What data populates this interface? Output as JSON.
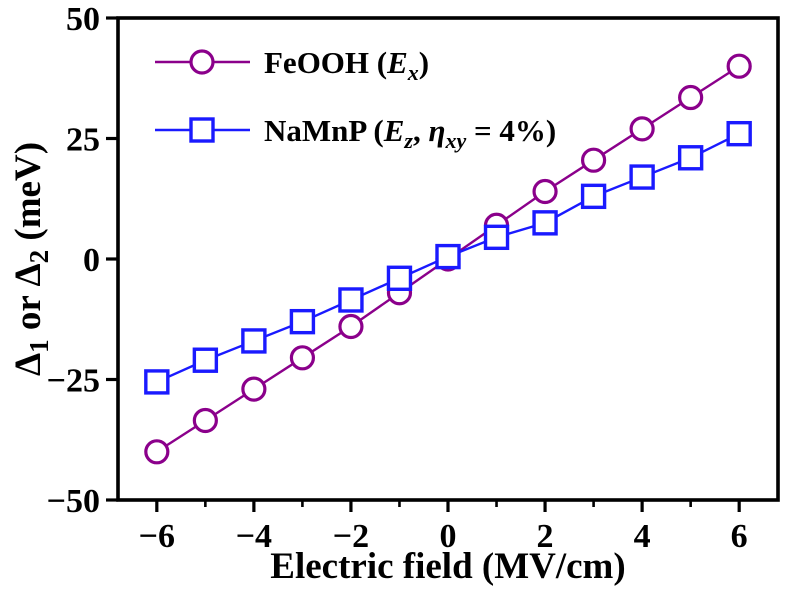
{
  "figure": {
    "background": "#ffffff",
    "frame_color": "#000000"
  },
  "chart_data": {
    "type": "line",
    "title": "",
    "xlabel": "Electric field (MV/cm)",
    "ylabel_plain": "Δ1 or Δ2 (meV)",
    "ylabel_segments": [
      {
        "t": "Δ"
      },
      {
        "t": "1",
        "sub": true
      },
      {
        "t": " or "
      },
      {
        "t": "Δ"
      },
      {
        "t": "2",
        "sub": true
      },
      {
        "t": " (meV)"
      }
    ],
    "x": [
      -6,
      -5,
      -4,
      -3,
      -2,
      -1,
      0,
      1,
      2,
      3,
      4,
      5,
      6
    ],
    "series": [
      {
        "name": "FeOOH (Ex)",
        "label_segments": [
          {
            "t": "FeOOH ("
          },
          {
            "t": "E",
            "it": true
          },
          {
            "t": "x",
            "sub": true,
            "it": true
          },
          {
            "t": ")"
          }
        ],
        "color": "#8B008B",
        "marker": "circle",
        "values": [
          -40,
          -33.5,
          -27,
          -20.5,
          -14,
          -7,
          0,
          7,
          14,
          20.5,
          27,
          33.5,
          40
        ]
      },
      {
        "name": "NaMnP (Ez, ηxy = 4%)",
        "label_segments": [
          {
            "t": "NaMnP ("
          },
          {
            "t": "E",
            "it": true
          },
          {
            "t": "z",
            "sub": true,
            "it": true
          },
          {
            "t": ",  "
          },
          {
            "t": "η",
            "it": true
          },
          {
            "t": "xy",
            "sub": true,
            "it": true
          },
          {
            "t": " = 4%)"
          }
        ],
        "color": "#1A1AFF",
        "marker": "square",
        "values": [
          -25.5,
          -21,
          -17,
          -13,
          -8.5,
          -4,
          0.5,
          4.5,
          7.5,
          13,
          17,
          21,
          26
        ]
      }
    ],
    "xlim": [
      -6.8,
      6.8
    ],
    "ylim": [
      -50,
      50
    ],
    "xticks": {
      "major": [
        -6,
        -4,
        -2,
        0,
        2,
        4,
        6
      ],
      "minor": [
        -5,
        -3,
        -1,
        1,
        3,
        5
      ],
      "labels": [
        "−6",
        "−4",
        "−2",
        "0",
        "2",
        "4",
        "6"
      ]
    },
    "yticks": {
      "major": [
        -50,
        -25,
        0,
        25,
        50
      ],
      "labels": [
        "−50",
        "−25",
        "0",
        "25",
        "50"
      ]
    },
    "grid": false,
    "legend_position": "top-left"
  }
}
